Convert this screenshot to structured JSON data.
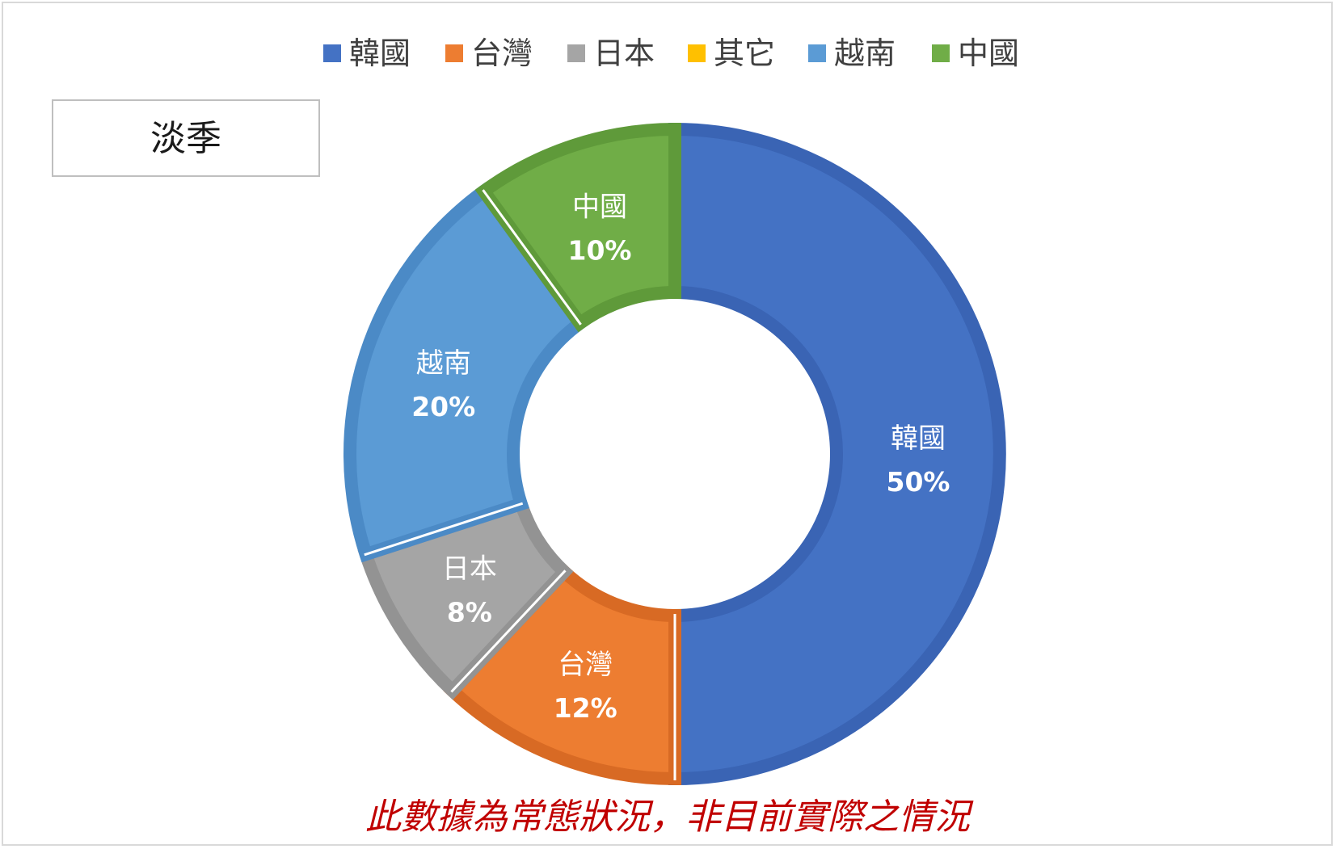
{
  "chart_data": {
    "type": "pie",
    "variant": "doughnut",
    "title": "淡季",
    "legend_position": "top",
    "categories": [
      "韓國",
      "台灣",
      "日本",
      "其它",
      "越南",
      "中國"
    ],
    "values": [
      50,
      12,
      8,
      0,
      20,
      10
    ],
    "value_labels": [
      "50%",
      "12%",
      "8%",
      "",
      "20%",
      "10%"
    ],
    "unit": "%",
    "colors": [
      "#4472c4",
      "#ed7d31",
      "#a5a5a5",
      "#ffc000",
      "#5b9bd5",
      "#70ad47"
    ],
    "border_colors": [
      "#3a64b4",
      "#d86a24",
      "#939393",
      "#e6ad00",
      "#4b8ac6",
      "#5f9a3a"
    ]
  },
  "footnote": "此數據為常態狀況，非目前實際之情況"
}
